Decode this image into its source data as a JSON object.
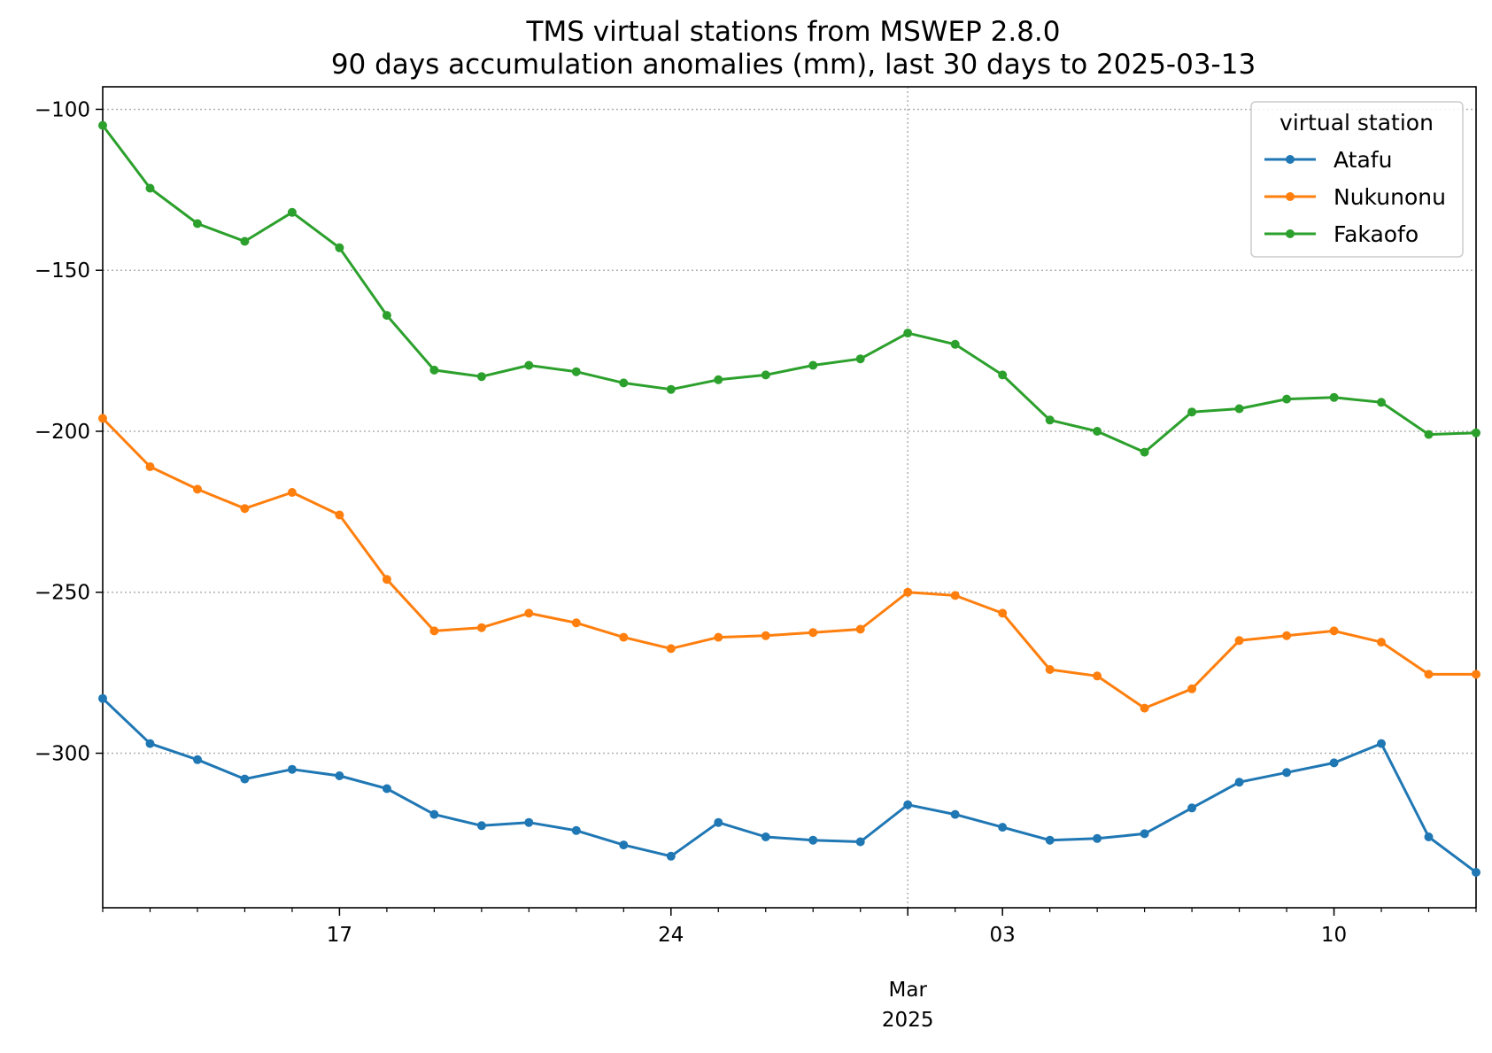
{
  "chart_data": {
    "type": "line",
    "title": "TMS virtual stations from MSWEP 2.8.0",
    "subtitle": "90 days accumulation anomalies (mm), last 30 days to 2025-03-13",
    "xlabel": "",
    "ylabel": "",
    "x": [
      "2025-02-12",
      "2025-02-13",
      "2025-02-14",
      "2025-02-15",
      "2025-02-16",
      "2025-02-17",
      "2025-02-18",
      "2025-02-19",
      "2025-02-20",
      "2025-02-21",
      "2025-02-22",
      "2025-02-23",
      "2025-02-24",
      "2025-02-25",
      "2025-02-26",
      "2025-02-27",
      "2025-02-28",
      "2025-03-01",
      "2025-03-02",
      "2025-03-03",
      "2025-03-04",
      "2025-03-05",
      "2025-03-06",
      "2025-03-07",
      "2025-03-08",
      "2025-03-09",
      "2025-03-10",
      "2025-03-11",
      "2025-03-12",
      "2025-03-13"
    ],
    "xlim": [
      "2025-02-12",
      "2025-03-13"
    ],
    "x_ticks_major": [
      {
        "date": "2025-02-17",
        "label": "17"
      },
      {
        "date": "2025-02-24",
        "label": "24"
      },
      {
        "date": "2025-03-03",
        "label": "03"
      },
      {
        "date": "2025-03-10",
        "label": "10"
      }
    ],
    "x_month_label": {
      "date": "2025-03-01",
      "line1": "Mar",
      "line2": "2025"
    },
    "ylim": [
      -348,
      -93
    ],
    "y_ticks": [
      -100,
      -150,
      -200,
      -250,
      -300
    ],
    "y_tick_labels": [
      "−100",
      "−150",
      "−200",
      "−250",
      "−300"
    ],
    "grid": true,
    "legend": {
      "title": "virtual station",
      "placement": "top-right"
    },
    "series": [
      {
        "name": "Atafu",
        "color": "#1f77b4",
        "values": [
          -283,
          -297,
          -302,
          -308,
          -305,
          -307,
          -311,
          -319,
          -322.5,
          -321.5,
          -324,
          -328.5,
          -332,
          -321.5,
          -326,
          -327,
          -327.5,
          -316,
          -319,
          -323,
          -327,
          -326.5,
          -325,
          -317,
          -309,
          -306,
          -303,
          -297,
          -326,
          -337
        ]
      },
      {
        "name": "Nukunonu",
        "color": "#ff7f0e",
        "values": [
          -196,
          -211,
          -218,
          -224,
          -219,
          -226,
          -246,
          -262,
          -261,
          -256.5,
          -259.5,
          -264,
          -267.5,
          -264,
          -263.5,
          -262.5,
          -261.5,
          -250,
          -251,
          -256.5,
          -274,
          -276,
          -286,
          -280,
          -265,
          -263.5,
          -262,
          -265.5,
          -275.5,
          -275.5
        ]
      },
      {
        "name": "Fakaofo",
        "color": "#2ca02c",
        "values": [
          -105,
          -124.5,
          -135.5,
          -141,
          -132,
          -143,
          -164,
          -181,
          -183,
          -179.5,
          -181.5,
          -185,
          -187,
          -184,
          -182.5,
          -179.5,
          -177.5,
          -169.5,
          -173,
          -182.5,
          -196.5,
          -200,
          -206.5,
          -194,
          -193,
          -190,
          -189.5,
          -191,
          -201,
          -200.5
        ]
      }
    ]
  }
}
